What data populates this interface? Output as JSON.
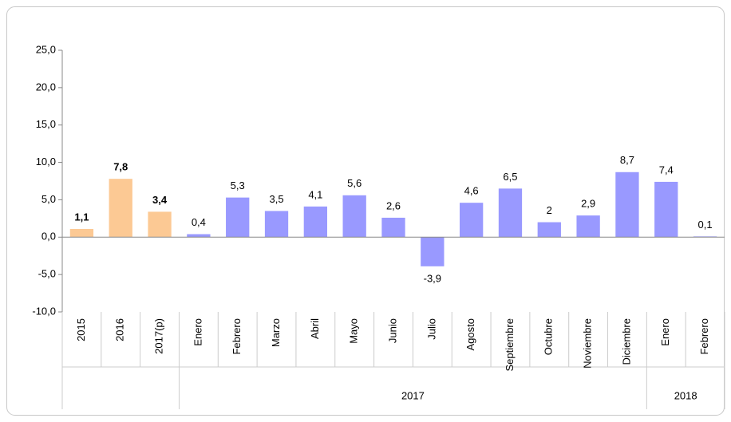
{
  "chart_data": {
    "type": "bar",
    "categories": [
      "2015",
      "2016",
      "2017(p)",
      "Enero",
      "Febrero",
      "Marzo",
      "Abril",
      "Mayo",
      "Junio",
      "Julio",
      "Agosto",
      "Septiembre",
      "Octubre",
      "Noviembre",
      "Diciembre",
      "Enero",
      "Febrero"
    ],
    "values": [
      1.1,
      7.8,
      3.4,
      0.4,
      5.3,
      3.5,
      4.1,
      5.6,
      2.6,
      -3.9,
      4.6,
      6.5,
      2,
      2.9,
      8.7,
      7.4,
      0.1
    ],
    "value_labels": [
      "1,1",
      "7,8",
      "3,4",
      "0,4",
      "5,3",
      "3,5",
      "4,1",
      "5,6",
      "2,6",
      "-3,9",
      "4,6",
      "6,5",
      "2",
      "2,9",
      "8,7",
      "7,4",
      "0,1"
    ],
    "colors": [
      "#fcc994",
      "#fcc994",
      "#fcc994",
      "#9999ff",
      "#9999ff",
      "#9999ff",
      "#9999ff",
      "#9999ff",
      "#9999ff",
      "#9999ff",
      "#9999ff",
      "#9999ff",
      "#9999ff",
      "#9999ff",
      "#9999ff",
      "#9999ff",
      "#9999ff"
    ],
    "groups": [
      {
        "label": "2017",
        "start": 3,
        "end": 14
      },
      {
        "label": "2018",
        "start": 15,
        "end": 16
      }
    ],
    "ylim": [
      -10,
      25
    ],
    "yticks": [
      {
        "value": -10,
        "label": "-10,0"
      },
      {
        "value": -5,
        "label": "-5,0"
      },
      {
        "value": 0,
        "label": "0,0"
      },
      {
        "value": 5,
        "label": "5,0"
      },
      {
        "value": 10,
        "label": "10,0"
      },
      {
        "value": 15,
        "label": "15,0"
      },
      {
        "value": 20,
        "label": "20,0"
      },
      {
        "value": 25,
        "label": "25,0"
      }
    ],
    "grid": false
  }
}
